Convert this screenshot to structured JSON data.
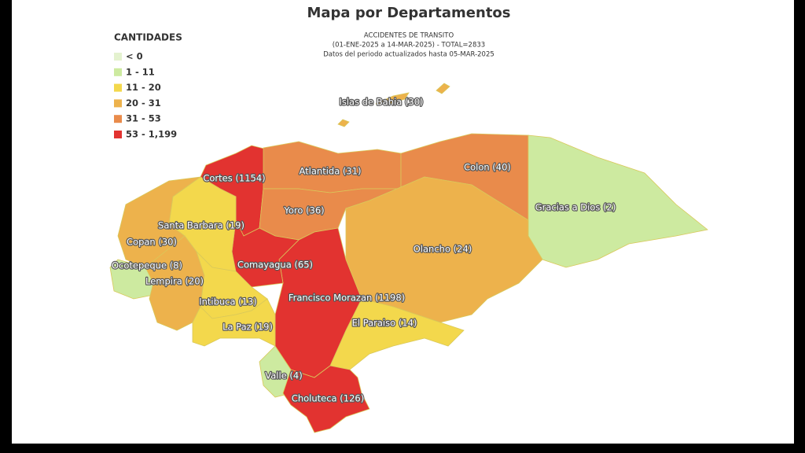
{
  "header": {
    "title": "Mapa por Departamentos",
    "subtitle": [
      "ACCIDENTES DE TRANSITO",
      "(01-ENE-2025 a 14-MAR-2025) - TOTAL=2833",
      "Datos del periodo actualizados hasta 05-MAR-2025"
    ]
  },
  "legend": {
    "title": "CANTIDADES",
    "items": [
      {
        "label": "< 0",
        "color": "#e4f2cf"
      },
      {
        "label": "1 - 11",
        "color": "#cdeaa0"
      },
      {
        "label": "11 - 20",
        "color": "#f3d84c"
      },
      {
        "label": "20 - 31",
        "color": "#edb24c"
      },
      {
        "label": "31 - 53",
        "color": "#e98b4b"
      },
      {
        "label": "53 - 1,199",
        "color": "#e23330"
      }
    ]
  },
  "departments": [
    {
      "label": "Islas de Bahia (30)",
      "color": "#edb24c"
    },
    {
      "label": "Cortes (1154)",
      "color": "#e23330"
    },
    {
      "label": "Atlantida (31)",
      "color": "#e98b4b"
    },
    {
      "label": "Colon (40)",
      "color": "#e98b4b"
    },
    {
      "label": "Yoro (36)",
      "color": "#e98b4b"
    },
    {
      "label": "Gracias a Dios (2)",
      "color": "#cdeaa0"
    },
    {
      "label": "Olancho (24)",
      "color": "#edb24c"
    },
    {
      "label": "El Paraiso (14)",
      "color": "#f3d84c"
    },
    {
      "label": "Francisco Morazan (1198)",
      "color": "#e23330"
    },
    {
      "label": "Comayagua (65)",
      "color": "#e23330"
    },
    {
      "label": "Santa Barbara (19)",
      "color": "#f3d84c"
    },
    {
      "label": "Copan (30)",
      "color": "#edb24c"
    },
    {
      "label": "Ocotepeque (8)",
      "color": "#cdeaa0"
    },
    {
      "label": "Lempira (20)",
      "color": "#edb24c"
    },
    {
      "label": "Intibuca (13)",
      "color": "#f3d84c"
    },
    {
      "label": "La Paz (19)",
      "color": "#f3d84c"
    },
    {
      "label": "Valle (4)",
      "color": "#cdeaa0"
    },
    {
      "label": "Choluteca (126)",
      "color": "#e23330"
    }
  ]
}
